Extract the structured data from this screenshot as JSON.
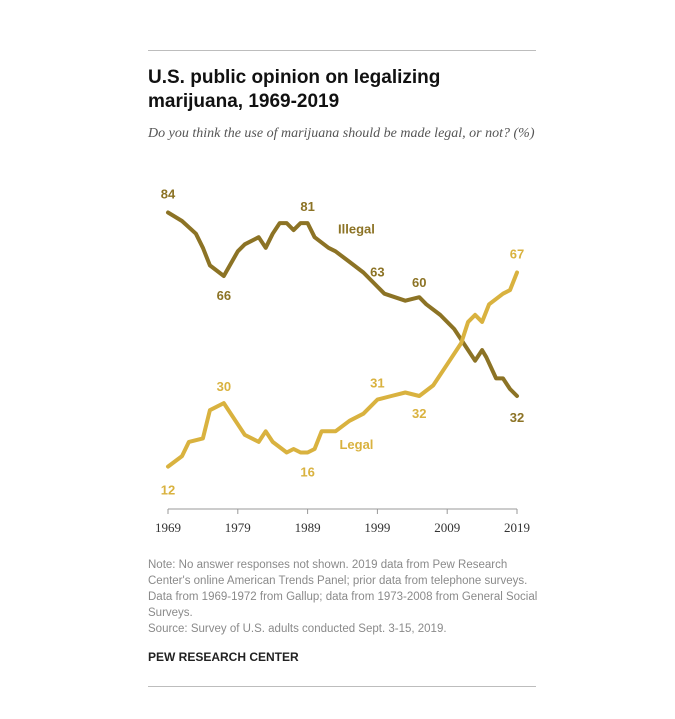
{
  "title": "U.S. public opinion on legalizing marijuana, 1969-2019",
  "subtitle": "Do you think the use of marijuana should be made legal, or not? (%)",
  "note": "Note: No answer responses not shown. 2019 data from Pew Research Center's online American Trends Panel; prior data from telephone surveys. Data from 1969-1972 from Gallup; data from 1973-2008 from General Social Surveys.",
  "source": "Source: Survey of U.S. adults conducted Sept. 3-15, 2019.",
  "brand": "PEW RESEARCH CENTER",
  "chart_data": {
    "type": "line",
    "xlim": [
      1969,
      2019
    ],
    "ylim": [
      0,
      100
    ],
    "x_ticks": [
      "1969",
      "1979",
      "1989",
      "1999",
      "2009",
      "2019"
    ],
    "grid": false,
    "series": [
      {
        "name": "Illegal",
        "color": "#8c7325",
        "x": [
          1969,
          1971,
          1973,
          1974,
          1975,
          1977,
          1979,
          1980,
          1982,
          1983,
          1984,
          1985,
          1986,
          1987,
          1988,
          1989,
          1990,
          1992,
          1993,
          1995,
          1997,
          1999,
          2000,
          2003,
          2005,
          2006,
          2008,
          2010,
          2011,
          2013,
          2014,
          2014.6,
          2016,
          2017,
          2018,
          2019
        ],
        "values": [
          84,
          81.6,
          78,
          74,
          69,
          66,
          73,
          75,
          77,
          74,
          78,
          81,
          81,
          79,
          81,
          81,
          77,
          74,
          73,
          70,
          67,
          63,
          61,
          59,
          60,
          58,
          55,
          51,
          48,
          42,
          45,
          43,
          37,
          37,
          34,
          32
        ]
      },
      {
        "name": "Legal",
        "color": "#d9b23f",
        "x": [
          1969,
          1971,
          1972,
          1974,
          1975,
          1977,
          1979,
          1980,
          1982,
          1983,
          1984,
          1986,
          1987,
          1988,
          1989,
          1990,
          1991,
          1993,
          1995,
          1997,
          1999,
          2001,
          2003,
          2005,
          2007,
          2009,
          2011,
          2012,
          2013,
          2014,
          2015,
          2017,
          2018,
          2019
        ],
        "values": [
          12,
          15,
          19,
          20,
          28,
          30,
          24,
          21,
          19,
          22,
          19,
          16,
          17,
          16,
          16,
          17,
          22,
          22,
          25,
          27,
          31,
          32,
          33,
          32,
          35,
          41,
          47,
          53,
          55,
          53,
          58,
          61,
          62,
          67
        ]
      }
    ],
    "annotations": [
      {
        "series": "Illegal",
        "text": "84",
        "x": 1969,
        "y": 84
      },
      {
        "series": "Illegal",
        "text": "66",
        "x": 1977,
        "y": 66
      },
      {
        "series": "Illegal",
        "text": "81",
        "x": 1989,
        "y": 81
      },
      {
        "series": "Illegal",
        "text": "63",
        "x": 1999,
        "y": 63
      },
      {
        "series": "Illegal",
        "text": "60",
        "x": 2005,
        "y": 60
      },
      {
        "series": "Illegal",
        "text": "32",
        "x": 2019,
        "y": 32
      },
      {
        "series": "Legal",
        "text": "12",
        "x": 1969,
        "y": 12
      },
      {
        "series": "Legal",
        "text": "30",
        "x": 1977,
        "y": 30
      },
      {
        "series": "Legal",
        "text": "16",
        "x": 1989,
        "y": 16
      },
      {
        "series": "Legal",
        "text": "31",
        "x": 1999,
        "y": 31
      },
      {
        "series": "Legal",
        "text": "32",
        "x": 2005,
        "y": 32
      },
      {
        "series": "Legal",
        "text": "67",
        "x": 2019,
        "y": 67
      }
    ]
  }
}
